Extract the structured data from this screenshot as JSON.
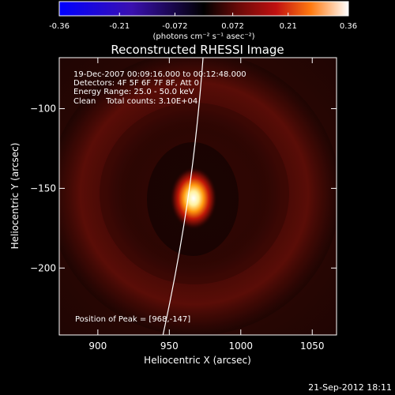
{
  "colorbar": {
    "ticks": [
      "-0.36",
      "-0.21",
      "-0.072",
      "0.072",
      "0.21",
      "0.36"
    ],
    "tick_values": [
      -0.36,
      -0.21,
      -0.072,
      0.072,
      0.21,
      0.36
    ],
    "range": [
      -0.36,
      0.36
    ],
    "unit_label": "(photons cm⁻² s⁻¹ asec⁻²)"
  },
  "plot": {
    "title": "Reconstructed RHESSI Image",
    "info_lines": [
      "19-Dec-2007 00:09:16.000 to 00:12:48.000",
      "Detectors: 4F 5F 6F 7F 8F, Att 0",
      "Energy Range: 25.0 - 50.0 keV",
      "Clean    Total counts: 3.10E+04"
    ],
    "peak_label": "Position of Peak = [968,-147]",
    "xlabel": "Heliocentric X (arcsec)",
    "ylabel": "Heliocentric Y (arcsec)",
    "xlim": [
      873,
      1067
    ],
    "ylim": [
      -242,
      -68
    ],
    "xticks": [
      900,
      950,
      1000,
      1050
    ],
    "yticks": [
      -100,
      -150,
      -200
    ],
    "xtick_labels": [
      "900",
      "950",
      "1000",
      "1050"
    ],
    "ytick_labels": [
      "−100",
      "−150",
      "−200"
    ]
  },
  "footer": {
    "date": "21-Sep-2012 18:11"
  }
}
